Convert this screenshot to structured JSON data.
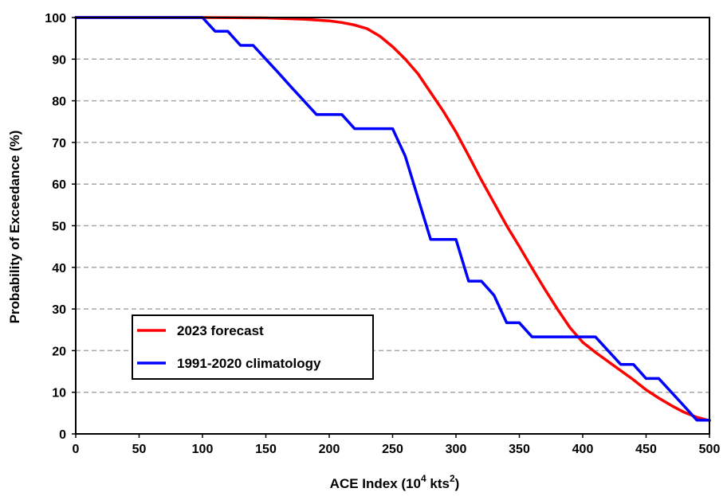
{
  "chart_data": {
    "type": "line",
    "xlabel": "ACE Index (10",
    "xlabel_sup1": "4",
    "xlabel_mid": " kts",
    "xlabel_sup2": "2",
    "xlabel_end": ")",
    "ylabel": "Probability of Exceedance (%)",
    "xlim": [
      0,
      500
    ],
    "ylim": [
      0,
      100
    ],
    "x_ticks": [
      0,
      50,
      100,
      150,
      200,
      250,
      300,
      350,
      400,
      450,
      500
    ],
    "y_ticks": [
      0,
      10,
      20,
      30,
      40,
      50,
      60,
      70,
      80,
      90,
      100
    ],
    "grid": "horizontal dashed",
    "legend_position": "lower-left",
    "series": [
      {
        "name": "2023 forecast",
        "color": "#ff0000",
        "x": [
          0,
          100,
          150,
          180,
          200,
          210,
          220,
          230,
          240,
          250,
          260,
          270,
          280,
          290,
          300,
          310,
          320,
          330,
          340,
          350,
          360,
          370,
          380,
          390,
          400,
          410,
          420,
          430,
          440,
          450,
          460,
          470,
          480,
          490,
          500
        ],
        "y": [
          100,
          100,
          99.9,
          99.6,
          99.2,
          98.8,
          98.2,
          97.3,
          95.5,
          93,
          90,
          86.5,
          82,
          77.5,
          72.5,
          66.8,
          61,
          55.5,
          50,
          45,
          39.8,
          34.8,
          30,
          25.5,
          22,
          19.6,
          17.4,
          15.2,
          13,
          10.6,
          8.6,
          6.8,
          5.2,
          4,
          3.2
        ]
      },
      {
        "name": "1991-2020 climatology",
        "color": "#0000ff",
        "x": [
          0,
          100,
          110,
          120,
          130,
          140,
          150,
          160,
          170,
          180,
          190,
          200,
          210,
          220,
          230,
          240,
          250,
          260,
          270,
          280,
          290,
          300,
          310,
          320,
          330,
          340,
          350,
          360,
          370,
          380,
          390,
          400,
          410,
          420,
          430,
          440,
          450,
          460,
          470,
          480,
          490,
          500
        ],
        "y": [
          100,
          100,
          96.7,
          96.7,
          93.3,
          93.3,
          90,
          86.7,
          83.3,
          80,
          76.7,
          76.7,
          76.7,
          73.3,
          73.3,
          73.3,
          73.3,
          66.7,
          56.7,
          46.7,
          46.7,
          46.7,
          36.7,
          36.7,
          33.3,
          26.7,
          26.7,
          23.3,
          23.3,
          23.3,
          23.3,
          23.3,
          23.3,
          20,
          16.7,
          16.7,
          13.3,
          13.3,
          10,
          6.7,
          3.3,
          3.3
        ]
      }
    ]
  }
}
